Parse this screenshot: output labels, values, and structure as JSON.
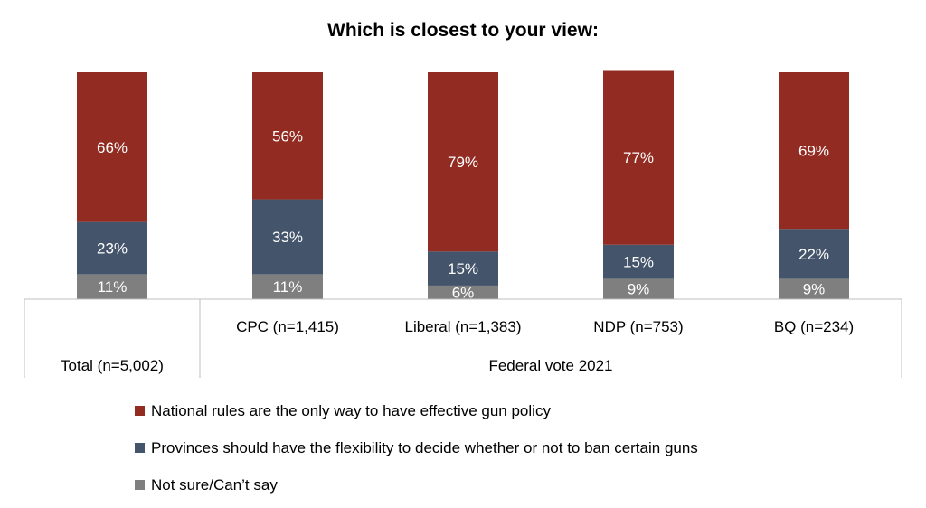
{
  "chart_data": {
    "type": "bar",
    "stacked": true,
    "percent_stacked": true,
    "title": "Which is closest to your view:",
    "categories": [
      "Total (n=5,002)",
      "CPC (n=1,415)",
      "Liberal (n=1,383)",
      "NDP (n=753)",
      "BQ (n=234)"
    ],
    "group_label": "Federal vote 2021",
    "series": [
      {
        "name": "Not sure/Can’t say",
        "color": "#7f7f7f",
        "values": [
          11,
          11,
          6,
          9,
          9
        ],
        "labels": [
          "11%",
          "11%",
          "6%",
          "9%",
          "9%"
        ]
      },
      {
        "name": "Provinces should have the flexibility to decide whether or not to ban certain guns",
        "color": "#44546a",
        "values": [
          23,
          33,
          15,
          15,
          22
        ],
        "labels": [
          "23%",
          "33%",
          "15%",
          "15%",
          "22%"
        ]
      },
      {
        "name": "National rules are the only way to have effective gun policy",
        "color": "#922b21",
        "values": [
          66,
          56,
          79,
          77,
          69
        ],
        "labels": [
          "66%",
          "56%",
          "79%",
          "77%",
          "69%"
        ]
      }
    ],
    "legend_order": [
      2,
      1,
      0
    ],
    "legend_position": "bottom",
    "grid": false
  }
}
